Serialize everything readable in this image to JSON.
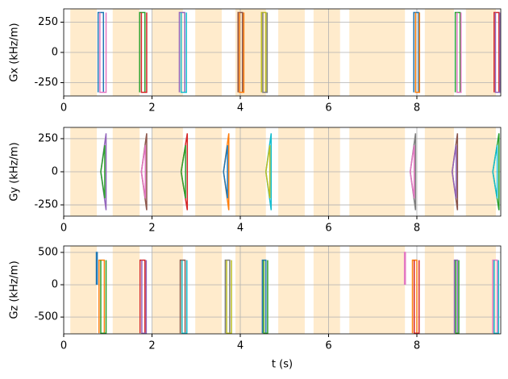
{
  "chart_data": [
    {
      "type": "line",
      "ylabel": "Gx (kHz/m)",
      "xlim": [
        0,
        9.9
      ],
      "xticks": [
        0,
        2,
        4,
        6,
        8
      ],
      "ylim": [
        -360,
        360
      ],
      "yticks": [
        -250,
        0,
        250
      ],
      "grid": true,
      "span_color": "#ffebcc",
      "spans": [
        [
          0.15,
          0.75
        ],
        [
          1.11,
          1.72
        ],
        [
          2.01,
          2.7
        ],
        [
          2.98,
          3.58
        ],
        [
          3.89,
          4.58
        ],
        [
          4.86,
          5.46
        ],
        [
          5.66,
          6.26
        ],
        [
          6.47,
          7.73
        ],
        [
          8.18,
          8.84
        ],
        [
          9.11,
          9.79
        ]
      ],
      "series": [
        {
          "color": "#1f77b4",
          "x": [
            0.78,
            0.78,
            0.9,
            0.9
          ],
          "values": [
            -330,
            330,
            330,
            -330
          ]
        },
        {
          "color": "#e377c2",
          "x": [
            0.82,
            0.82,
            0.96,
            0.96
          ],
          "values": [
            330,
            -330,
            -330,
            330
          ]
        },
        {
          "color": "#2ca02c",
          "x": [
            1.72,
            1.72,
            1.84,
            1.84
          ],
          "values": [
            -330,
            330,
            330,
            -330
          ]
        },
        {
          "color": "#d62728",
          "x": [
            1.76,
            1.76,
            1.88,
            1.88
          ],
          "values": [
            330,
            -330,
            -330,
            330
          ]
        },
        {
          "color": "#9467bd",
          "x": [
            2.62,
            2.62,
            2.74,
            2.74
          ],
          "values": [
            -330,
            330,
            330,
            -330
          ]
        },
        {
          "color": "#17becf",
          "x": [
            2.66,
            2.66,
            2.78,
            2.78
          ],
          "values": [
            330,
            -330,
            -330,
            330
          ]
        },
        {
          "color": "#8c564b",
          "x": [
            3.95,
            3.95,
            4.05,
            4.05
          ],
          "values": [
            -330,
            330,
            330,
            -330
          ]
        },
        {
          "color": "#ff7f0e",
          "x": [
            3.98,
            3.98,
            4.08,
            4.08
          ],
          "values": [
            330,
            -330,
            -330,
            330
          ]
        },
        {
          "color": "#bcbd22",
          "x": [
            4.48,
            4.48,
            4.58,
            4.58
          ],
          "values": [
            -330,
            330,
            330,
            -330
          ]
        },
        {
          "color": "#7f7f7f",
          "x": [
            4.51,
            4.51,
            4.61,
            4.61
          ],
          "values": [
            330,
            -330,
            -330,
            330
          ]
        },
        {
          "color": "#1f77b4",
          "x": [
            7.93,
            7.93,
            8.04,
            8.04
          ],
          "values": [
            -330,
            330,
            330,
            -330
          ]
        },
        {
          "color": "#ff7f0e",
          "x": [
            7.97,
            7.97,
            8.06,
            8.06
          ],
          "values": [
            330,
            -330,
            -330,
            330
          ]
        },
        {
          "color": "#2ca02c",
          "x": [
            8.87,
            8.87,
            8.98,
            8.98
          ],
          "values": [
            -330,
            330,
            330,
            -330
          ]
        },
        {
          "color": "#e377c2",
          "x": [
            8.91,
            8.91,
            9.0,
            9.0
          ],
          "values": [
            330,
            -330,
            -330,
            330
          ]
        },
        {
          "color": "#d62728",
          "x": [
            9.75,
            9.75,
            9.86,
            9.86
          ],
          "values": [
            -330,
            330,
            330,
            -330
          ]
        },
        {
          "color": "#9467bd",
          "x": [
            9.78,
            9.78,
            9.88,
            9.88
          ],
          "values": [
            330,
            -330,
            -330,
            330
          ]
        }
      ]
    },
    {
      "type": "line",
      "ylabel": "Gy (kHz/m)",
      "xlim": [
        0,
        9.9
      ],
      "xticks": [
        0,
        2,
        4,
        6,
        8
      ],
      "ylim": [
        -335,
        335
      ],
      "yticks": [
        -250,
        0,
        250
      ],
      "grid": true,
      "span_color": "#ffebcc",
      "spans": [
        [
          0.15,
          0.75
        ],
        [
          1.11,
          1.72
        ],
        [
          2.01,
          2.7
        ],
        [
          2.98,
          3.58
        ],
        [
          3.89,
          4.58
        ],
        [
          4.86,
          5.46
        ],
        [
          5.66,
          6.26
        ],
        [
          6.47,
          7.73
        ],
        [
          8.18,
          8.84
        ],
        [
          9.11,
          9.79
        ]
      ],
      "series": [
        {
          "color": "#9467bd",
          "x": [
            0.84,
            0.96,
            0.96,
            0.84
          ],
          "values": [
            0,
            290,
            -290,
            0
          ]
        },
        {
          "color": "#2ca02c",
          "x": [
            0.84,
            0.93,
            0.93,
            0.84
          ],
          "values": [
            0,
            -200,
            200,
            0
          ]
        },
        {
          "color": "#8c564b",
          "x": [
            1.76,
            1.88,
            1.88,
            1.76
          ],
          "values": [
            0,
            290,
            -290,
            0
          ]
        },
        {
          "color": "#e377c2",
          "x": [
            1.76,
            1.85,
            1.85,
            1.76
          ],
          "values": [
            0,
            -200,
            200,
            0
          ]
        },
        {
          "color": "#d62728",
          "x": [
            2.66,
            2.8,
            2.8,
            2.66
          ],
          "values": [
            0,
            290,
            -290,
            0
          ]
        },
        {
          "color": "#2ca02c",
          "x": [
            2.66,
            2.76,
            2.76,
            2.66
          ],
          "values": [
            0,
            -200,
            200,
            0
          ]
        },
        {
          "color": "#ff7f0e",
          "x": [
            3.62,
            3.74,
            3.74,
            3.62
          ],
          "values": [
            0,
            290,
            -290,
            0
          ]
        },
        {
          "color": "#1f77b4",
          "x": [
            3.62,
            3.71,
            3.71,
            3.62
          ],
          "values": [
            0,
            -200,
            200,
            0
          ]
        },
        {
          "color": "#17becf",
          "x": [
            4.58,
            4.7,
            4.7,
            4.58
          ],
          "values": [
            0,
            290,
            -290,
            0
          ]
        },
        {
          "color": "#bcbd22",
          "x": [
            4.58,
            4.67,
            4.67,
            4.58
          ],
          "values": [
            0,
            -200,
            200,
            0
          ]
        },
        {
          "color": "#7f7f7f",
          "x": [
            7.85,
            7.97,
            7.97,
            7.85
          ],
          "values": [
            0,
            290,
            -290,
            0
          ]
        },
        {
          "color": "#e377c2",
          "x": [
            7.85,
            7.94,
            7.94,
            7.85
          ],
          "values": [
            0,
            -200,
            200,
            0
          ]
        },
        {
          "color": "#8c564b",
          "x": [
            8.8,
            8.92,
            8.92,
            8.8
          ],
          "values": [
            0,
            290,
            -290,
            0
          ]
        },
        {
          "color": "#9467bd",
          "x": [
            8.8,
            8.89,
            8.89,
            8.8
          ],
          "values": [
            0,
            -200,
            200,
            0
          ]
        },
        {
          "color": "#2ca02c",
          "x": [
            9.72,
            9.86,
            9.86,
            9.72
          ],
          "values": [
            0,
            290,
            -290,
            0
          ]
        },
        {
          "color": "#17becf",
          "x": [
            9.72,
            9.82,
            9.82,
            9.72
          ],
          "values": [
            0,
            -200,
            200,
            0
          ]
        }
      ]
    },
    {
      "type": "line",
      "ylabel": "Gz (kHz/m)",
      "xlabel": "t (s)",
      "xlim": [
        0,
        9.9
      ],
      "xticks": [
        0,
        2,
        4,
        6,
        8
      ],
      "ylim": [
        -760,
        600
      ],
      "yticks": [
        -500,
        0,
        500
      ],
      "grid": true,
      "span_color": "#ffebcc",
      "spans": [
        [
          0.15,
          0.75
        ],
        [
          1.11,
          1.72
        ],
        [
          2.01,
          2.7
        ],
        [
          2.98,
          3.58
        ],
        [
          3.89,
          4.58
        ],
        [
          4.86,
          5.46
        ],
        [
          5.66,
          6.26
        ],
        [
          6.47,
          7.73
        ],
        [
          8.18,
          8.84
        ],
        [
          9.11,
          9.79
        ]
      ],
      "series": [
        {
          "color": "#1f77b4",
          "x": [
            0.74,
            0.74,
            0.76,
            0.76
          ],
          "values": [
            0,
            500,
            500,
            0
          ]
        },
        {
          "color": "#e377c2",
          "x": [
            7.72,
            7.72,
            7.74,
            7.74
          ],
          "values": [
            0,
            500,
            500,
            0
          ]
        },
        {
          "color": "#ff7f0e",
          "x": [
            0.8,
            0.8,
            0.92,
            0.92
          ],
          "values": [
            -750,
            380,
            380,
            -750
          ]
        },
        {
          "color": "#2ca02c",
          "x": [
            0.84,
            0.84,
            0.96,
            0.96
          ],
          "values": [
            380,
            -750,
            -750,
            380
          ]
        },
        {
          "color": "#d62728",
          "x": [
            1.73,
            1.73,
            1.84,
            1.84
          ],
          "values": [
            -750,
            380,
            380,
            -750
          ]
        },
        {
          "color": "#9467bd",
          "x": [
            1.77,
            1.77,
            1.87,
            1.87
          ],
          "values": [
            380,
            -750,
            -750,
            380
          ]
        },
        {
          "color": "#8c564b",
          "x": [
            2.64,
            2.64,
            2.75,
            2.75
          ],
          "values": [
            -750,
            380,
            380,
            -750
          ]
        },
        {
          "color": "#17becf",
          "x": [
            2.68,
            2.68,
            2.79,
            2.79
          ],
          "values": [
            380,
            -750,
            -750,
            380
          ]
        },
        {
          "color": "#7f7f7f",
          "x": [
            3.66,
            3.66,
            3.76,
            3.76
          ],
          "values": [
            -750,
            380,
            380,
            -750
          ]
        },
        {
          "color": "#bcbd22",
          "x": [
            3.69,
            3.69,
            3.8,
            3.8
          ],
          "values": [
            380,
            -750,
            -750,
            380
          ]
        },
        {
          "color": "#1f77b4",
          "x": [
            4.5,
            4.5,
            4.58,
            4.58
          ],
          "values": [
            -750,
            380,
            380,
            -750
          ]
        },
        {
          "color": "#2ca02c",
          "x": [
            4.53,
            4.53,
            4.62,
            4.62
          ],
          "values": [
            380,
            -750,
            -750,
            380
          ]
        },
        {
          "color": "#ff7f0e",
          "x": [
            7.9,
            7.9,
            8.0,
            8.0
          ],
          "values": [
            -750,
            380,
            380,
            -750
          ]
        },
        {
          "color": "#d62728",
          "x": [
            7.94,
            7.94,
            8.05,
            8.05
          ],
          "values": [
            380,
            -750,
            -750,
            380
          ]
        },
        {
          "color": "#9467bd",
          "x": [
            8.85,
            8.85,
            8.92,
            8.92
          ],
          "values": [
            -750,
            380,
            380,
            -750
          ]
        },
        {
          "color": "#2ca02c",
          "x": [
            8.88,
            8.88,
            8.95,
            8.95
          ],
          "values": [
            380,
            -750,
            -750,
            380
          ]
        },
        {
          "color": "#e377c2",
          "x": [
            9.72,
            9.72,
            9.82,
            9.82
          ],
          "values": [
            -750,
            380,
            380,
            -750
          ]
        },
        {
          "color": "#17becf",
          "x": [
            9.75,
            9.75,
            9.85,
            9.85
          ],
          "values": [
            380,
            -750,
            -750,
            380
          ]
        }
      ]
    }
  ]
}
